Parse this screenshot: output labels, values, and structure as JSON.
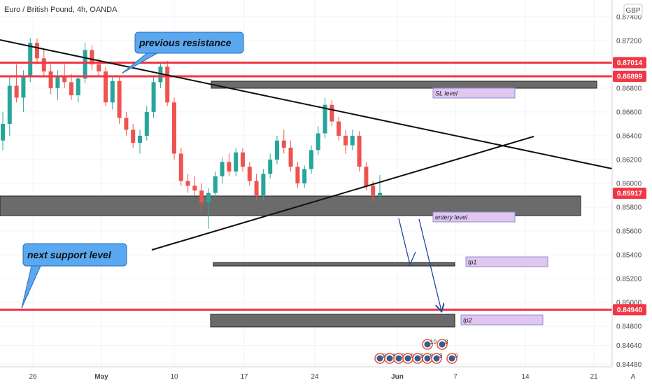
{
  "header": {
    "title": "Euro / British Pound, 4h, OANDA"
  },
  "currency_badge": "GBP",
  "scale_badge": "A",
  "chart_data": {
    "type": "candlestick",
    "title": "Euro / British Pound, 4h, OANDA",
    "x_axis_labels": [
      "26",
      "May",
      "10",
      "17",
      "24",
      "Jun",
      "7",
      "14",
      "21"
    ],
    "y_axis_labels": [
      "0.87400",
      "0.87200",
      "0.87000",
      "0.86800",
      "0.86600",
      "0.86400",
      "0.86200",
      "0.86000",
      "0.85800",
      "0.85600",
      "0.85400",
      "0.85200",
      "0.85000",
      "0.84800",
      "0.84640",
      "0.84480"
    ],
    "ylim": [
      0.8446,
      0.8754
    ],
    "price_tags": [
      {
        "value": 0.87014,
        "label": "0.87014",
        "color": "#f23645"
      },
      {
        "value": 0.86899,
        "label": "0.86899",
        "color": "#f23645"
      },
      {
        "value": 0.85917,
        "label": "0.85917",
        "color": "#f23645"
      },
      {
        "value": 0.8494,
        "label": "0.84940",
        "color": "#f23645"
      }
    ],
    "candles": [
      {
        "o": 0.8636,
        "h": 0.866,
        "l": 0.8628,
        "c": 0.865
      },
      {
        "o": 0.865,
        "h": 0.869,
        "l": 0.864,
        "c": 0.8682
      },
      {
        "o": 0.8682,
        "h": 0.87,
        "l": 0.8668,
        "c": 0.8672
      },
      {
        "o": 0.8672,
        "h": 0.8695,
        "l": 0.866,
        "c": 0.869
      },
      {
        "o": 0.869,
        "h": 0.8722,
        "l": 0.8685,
        "c": 0.8718
      },
      {
        "o": 0.8718,
        "h": 0.8722,
        "l": 0.87,
        "c": 0.8705
      },
      {
        "o": 0.8705,
        "h": 0.8712,
        "l": 0.869,
        "c": 0.8694
      },
      {
        "o": 0.8694,
        "h": 0.87,
        "l": 0.8675,
        "c": 0.868
      },
      {
        "o": 0.868,
        "h": 0.8695,
        "l": 0.867,
        "c": 0.869
      },
      {
        "o": 0.869,
        "h": 0.87,
        "l": 0.868,
        "c": 0.8685
      },
      {
        "o": 0.8685,
        "h": 0.8692,
        "l": 0.867,
        "c": 0.8674
      },
      {
        "o": 0.8674,
        "h": 0.869,
        "l": 0.8668,
        "c": 0.8688
      },
      {
        "o": 0.8688,
        "h": 0.8718,
        "l": 0.8684,
        "c": 0.8712
      },
      {
        "o": 0.8712,
        "h": 0.8716,
        "l": 0.8695,
        "c": 0.87
      },
      {
        "o": 0.87,
        "h": 0.8705,
        "l": 0.869,
        "c": 0.8694
      },
      {
        "o": 0.8694,
        "h": 0.8698,
        "l": 0.8665,
        "c": 0.8668
      },
      {
        "o": 0.8668,
        "h": 0.869,
        "l": 0.8662,
        "c": 0.8686
      },
      {
        "o": 0.8686,
        "h": 0.869,
        "l": 0.865,
        "c": 0.8655
      },
      {
        "o": 0.8655,
        "h": 0.866,
        "l": 0.864,
        "c": 0.8645
      },
      {
        "o": 0.8645,
        "h": 0.865,
        "l": 0.863,
        "c": 0.8634
      },
      {
        "o": 0.8634,
        "h": 0.8645,
        "l": 0.8625,
        "c": 0.864
      },
      {
        "o": 0.864,
        "h": 0.8665,
        "l": 0.8636,
        "c": 0.866
      },
      {
        "o": 0.866,
        "h": 0.869,
        "l": 0.8655,
        "c": 0.8685
      },
      {
        "o": 0.8685,
        "h": 0.8702,
        "l": 0.868,
        "c": 0.8698
      },
      {
        "o": 0.8698,
        "h": 0.8703,
        "l": 0.8665,
        "c": 0.8668
      },
      {
        "o": 0.8668,
        "h": 0.8672,
        "l": 0.862,
        "c": 0.8625
      },
      {
        "o": 0.8625,
        "h": 0.863,
        "l": 0.8598,
        "c": 0.8602
      },
      {
        "o": 0.8602,
        "h": 0.8608,
        "l": 0.8592,
        "c": 0.8598
      },
      {
        "o": 0.8598,
        "h": 0.8606,
        "l": 0.859,
        "c": 0.8594
      },
      {
        "o": 0.8594,
        "h": 0.86,
        "l": 0.8576,
        "c": 0.8584
      },
      {
        "o": 0.8584,
        "h": 0.8596,
        "l": 0.8562,
        "c": 0.8592
      },
      {
        "o": 0.8592,
        "h": 0.861,
        "l": 0.8588,
        "c": 0.8606
      },
      {
        "o": 0.8606,
        "h": 0.8622,
        "l": 0.86,
        "c": 0.8618
      },
      {
        "o": 0.8618,
        "h": 0.8625,
        "l": 0.8606,
        "c": 0.861
      },
      {
        "o": 0.861,
        "h": 0.863,
        "l": 0.8606,
        "c": 0.8626
      },
      {
        "o": 0.8626,
        "h": 0.863,
        "l": 0.861,
        "c": 0.8614
      },
      {
        "o": 0.8614,
        "h": 0.8618,
        "l": 0.8598,
        "c": 0.8602
      },
      {
        "o": 0.8602,
        "h": 0.8608,
        "l": 0.8586,
        "c": 0.859
      },
      {
        "o": 0.859,
        "h": 0.8612,
        "l": 0.8586,
        "c": 0.8608
      },
      {
        "o": 0.8608,
        "h": 0.8625,
        "l": 0.8604,
        "c": 0.862
      },
      {
        "o": 0.862,
        "h": 0.864,
        "l": 0.8616,
        "c": 0.8636
      },
      {
        "o": 0.8636,
        "h": 0.8645,
        "l": 0.8625,
        "c": 0.863
      },
      {
        "o": 0.863,
        "h": 0.8636,
        "l": 0.861,
        "c": 0.8614
      },
      {
        "o": 0.8614,
        "h": 0.8618,
        "l": 0.8596,
        "c": 0.86
      },
      {
        "o": 0.86,
        "h": 0.8615,
        "l": 0.8596,
        "c": 0.8612
      },
      {
        "o": 0.8612,
        "h": 0.8632,
        "l": 0.8608,
        "c": 0.8628
      },
      {
        "o": 0.8628,
        "h": 0.8648,
        "l": 0.8624,
        "c": 0.8642
      },
      {
        "o": 0.8642,
        "h": 0.8672,
        "l": 0.8638,
        "c": 0.8666
      },
      {
        "o": 0.8666,
        "h": 0.867,
        "l": 0.8648,
        "c": 0.8652
      },
      {
        "o": 0.8652,
        "h": 0.8656,
        "l": 0.8636,
        "c": 0.864
      },
      {
        "o": 0.864,
        "h": 0.8645,
        "l": 0.8625,
        "c": 0.8632
      },
      {
        "o": 0.8632,
        "h": 0.8645,
        "l": 0.8628,
        "c": 0.864
      },
      {
        "o": 0.864,
        "h": 0.8644,
        "l": 0.861,
        "c": 0.8614
      },
      {
        "o": 0.8614,
        "h": 0.8618,
        "l": 0.8594,
        "c": 0.8598
      },
      {
        "o": 0.8598,
        "h": 0.8602,
        "l": 0.8584,
        "c": 0.859
      },
      {
        "o": 0.859,
        "h": 0.8607,
        "l": 0.8586,
        "c": 0.8592
      }
    ],
    "callouts": [
      {
        "text": "previous resistance"
      },
      {
        "text": "next support level"
      }
    ],
    "annotations": [
      {
        "text": "SL level"
      },
      {
        "text": "entery level"
      },
      {
        "text": "tp1"
      },
      {
        "text": "tp2"
      }
    ],
    "event_markers": [
      "20",
      "12",
      "3",
      "0",
      "3",
      "0",
      "3",
      "10",
      "3",
      "0"
    ]
  }
}
